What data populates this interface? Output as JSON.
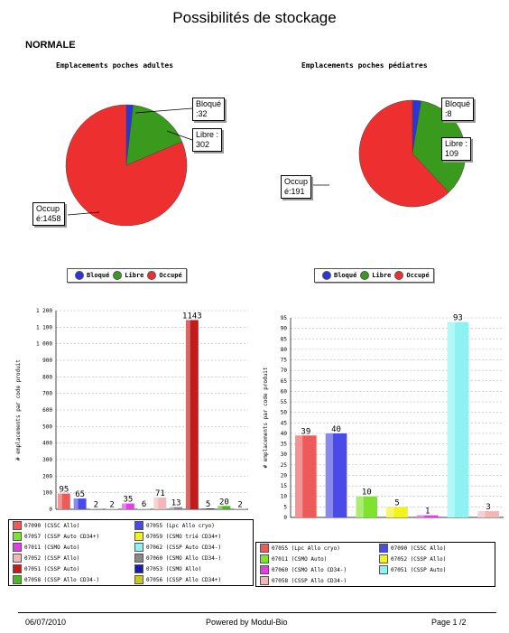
{
  "title": "Possibilités de stockage",
  "section": "NORMALE",
  "chart_data": [
    {
      "type": "pie",
      "title": "Emplacements poches adultes",
      "slices": [
        {
          "name": "Bloqué",
          "value": 32,
          "color": "#2b35d8",
          "label": "Bloqué\n:32"
        },
        {
          "name": "Libre",
          "value": 302,
          "color": "#3a9a1e",
          "label": "Libre :\n302"
        },
        {
          "name": "Occupé",
          "value": 1458,
          "color": "#ee2f2f",
          "label": "Occup\né:1458"
        }
      ],
      "legend": [
        "Bloqué",
        "Libre",
        "Occupé"
      ]
    },
    {
      "type": "pie",
      "title": "Emplacements poches pédiatres",
      "slices": [
        {
          "name": "Bloqué",
          "value": 8,
          "color": "#2b35d8",
          "label": "Bloqué\n:8"
        },
        {
          "name": "Libre",
          "value": 109,
          "color": "#3a9a1e",
          "label": "Libre :\n109"
        },
        {
          "name": "Occupé",
          "value": 191,
          "color": "#ee2f2f",
          "label": "Occup\né:191"
        }
      ],
      "legend": [
        "Bloqué",
        "Libre",
        "Occupé"
      ]
    },
    {
      "type": "bar",
      "ylabel": "# emplacements par code produit",
      "ylim": [
        0,
        1200
      ],
      "yticks": [
        "0",
        "100",
        "200",
        "300",
        "400",
        "500",
        "600",
        "700",
        "800",
        "900",
        "1 000",
        "1 100",
        "1 200"
      ],
      "grid": true,
      "series": [
        {
          "name": "07090 (CSSC Allo)",
          "value": 95,
          "color": "#ee5a5a"
        },
        {
          "name": "07055 (Lpc Allo cryo)",
          "value": 65,
          "color": "#4a4ae8"
        },
        {
          "name": "07057 (CSSP Auto CD34+)",
          "value": 2,
          "color": "#7ee22e"
        },
        {
          "name": "07059 (CSMO trié CD34+)",
          "value": 2,
          "color": "#f2f21e"
        },
        {
          "name": "07011 (CSMO Auto)",
          "value": 35,
          "color": "#e23ee8"
        },
        {
          "name": "07062 (CSSP Auto CD34-)",
          "value": 6,
          "color": "#8ef2f2"
        },
        {
          "name": "07052 (CSSP Allo)",
          "value": 71,
          "color": "#f2b8b8"
        },
        {
          "name": "07060 (CSMO Allo CD34-)",
          "value": 13,
          "color": "#888888"
        },
        {
          "name": "07051 (CSSP Auto)",
          "value": 1143,
          "color": "#c41a1a"
        },
        {
          "name": "07053 (CSMO Allo)",
          "value": 5,
          "color": "#1a1aa8"
        },
        {
          "name": "07058 (CSSP Allo CD34-)",
          "value": 20,
          "color": "#4ab81e"
        },
        {
          "name": "07056 (CSSP Allo CD34+)",
          "value": 2,
          "color": "#c8c81e"
        }
      ]
    },
    {
      "type": "bar",
      "ylabel": "# emplacements par code produit",
      "ylim": [
        0,
        95
      ],
      "yticks": [
        "0",
        "5",
        "10",
        "15",
        "20",
        "25",
        "30",
        "35",
        "40",
        "45",
        "50",
        "55",
        "60",
        "65",
        "70",
        "75",
        "80",
        "85",
        "90",
        "95"
      ],
      "grid": true,
      "series": [
        {
          "name": "07055 (Lpc Allo cryo)",
          "value": 39,
          "color": "#ee5a5a"
        },
        {
          "name": "07090 (CSSC Allo)",
          "value": 40,
          "color": "#4a4ae8"
        },
        {
          "name": "07011 (CSMO Auto)",
          "value": 10,
          "color": "#7ee22e"
        },
        {
          "name": "07052 (CSSP Allo)",
          "value": 5,
          "color": "#f2f21e"
        },
        {
          "name": "07060 (CSMO Allo CD34-)",
          "value": 1,
          "color": "#e23ee8"
        },
        {
          "name": "07051 (CSSP Auto)",
          "value": 93,
          "color": "#8ef2f2"
        },
        {
          "name": "07058 (CSSP Allo CD34-)",
          "value": 3,
          "color": "#f2b8b8"
        }
      ]
    }
  ],
  "footer": {
    "date": "06/07/2010",
    "powered": "Powered by Modul-Bio",
    "page": "Page 1 /2"
  }
}
